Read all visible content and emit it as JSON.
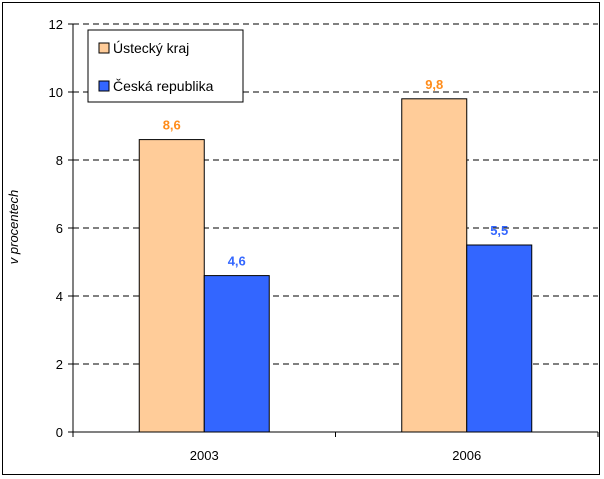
{
  "chart_data": {
    "type": "bar",
    "categories": [
      "2003",
      "2006"
    ],
    "series": [
      {
        "name": "Ústecký kraj",
        "values": [
          8.6,
          9.8
        ],
        "labels": [
          "8,6",
          "9,8"
        ],
        "color": "#FFCC99",
        "label_color": "#FF8C1A"
      },
      {
        "name": "Česká republika",
        "values": [
          4.6,
          5.5
        ],
        "labels": [
          "4,6",
          "5,5"
        ],
        "color": "#3366FF",
        "label_color": "#3366FF"
      }
    ],
    "ylabel": "v procentech",
    "xlabel": "",
    "ylim": [
      0,
      12
    ],
    "yticks": [
      0,
      2,
      4,
      6,
      8,
      10,
      12
    ],
    "grid": true,
    "legend_position": "top-left"
  }
}
